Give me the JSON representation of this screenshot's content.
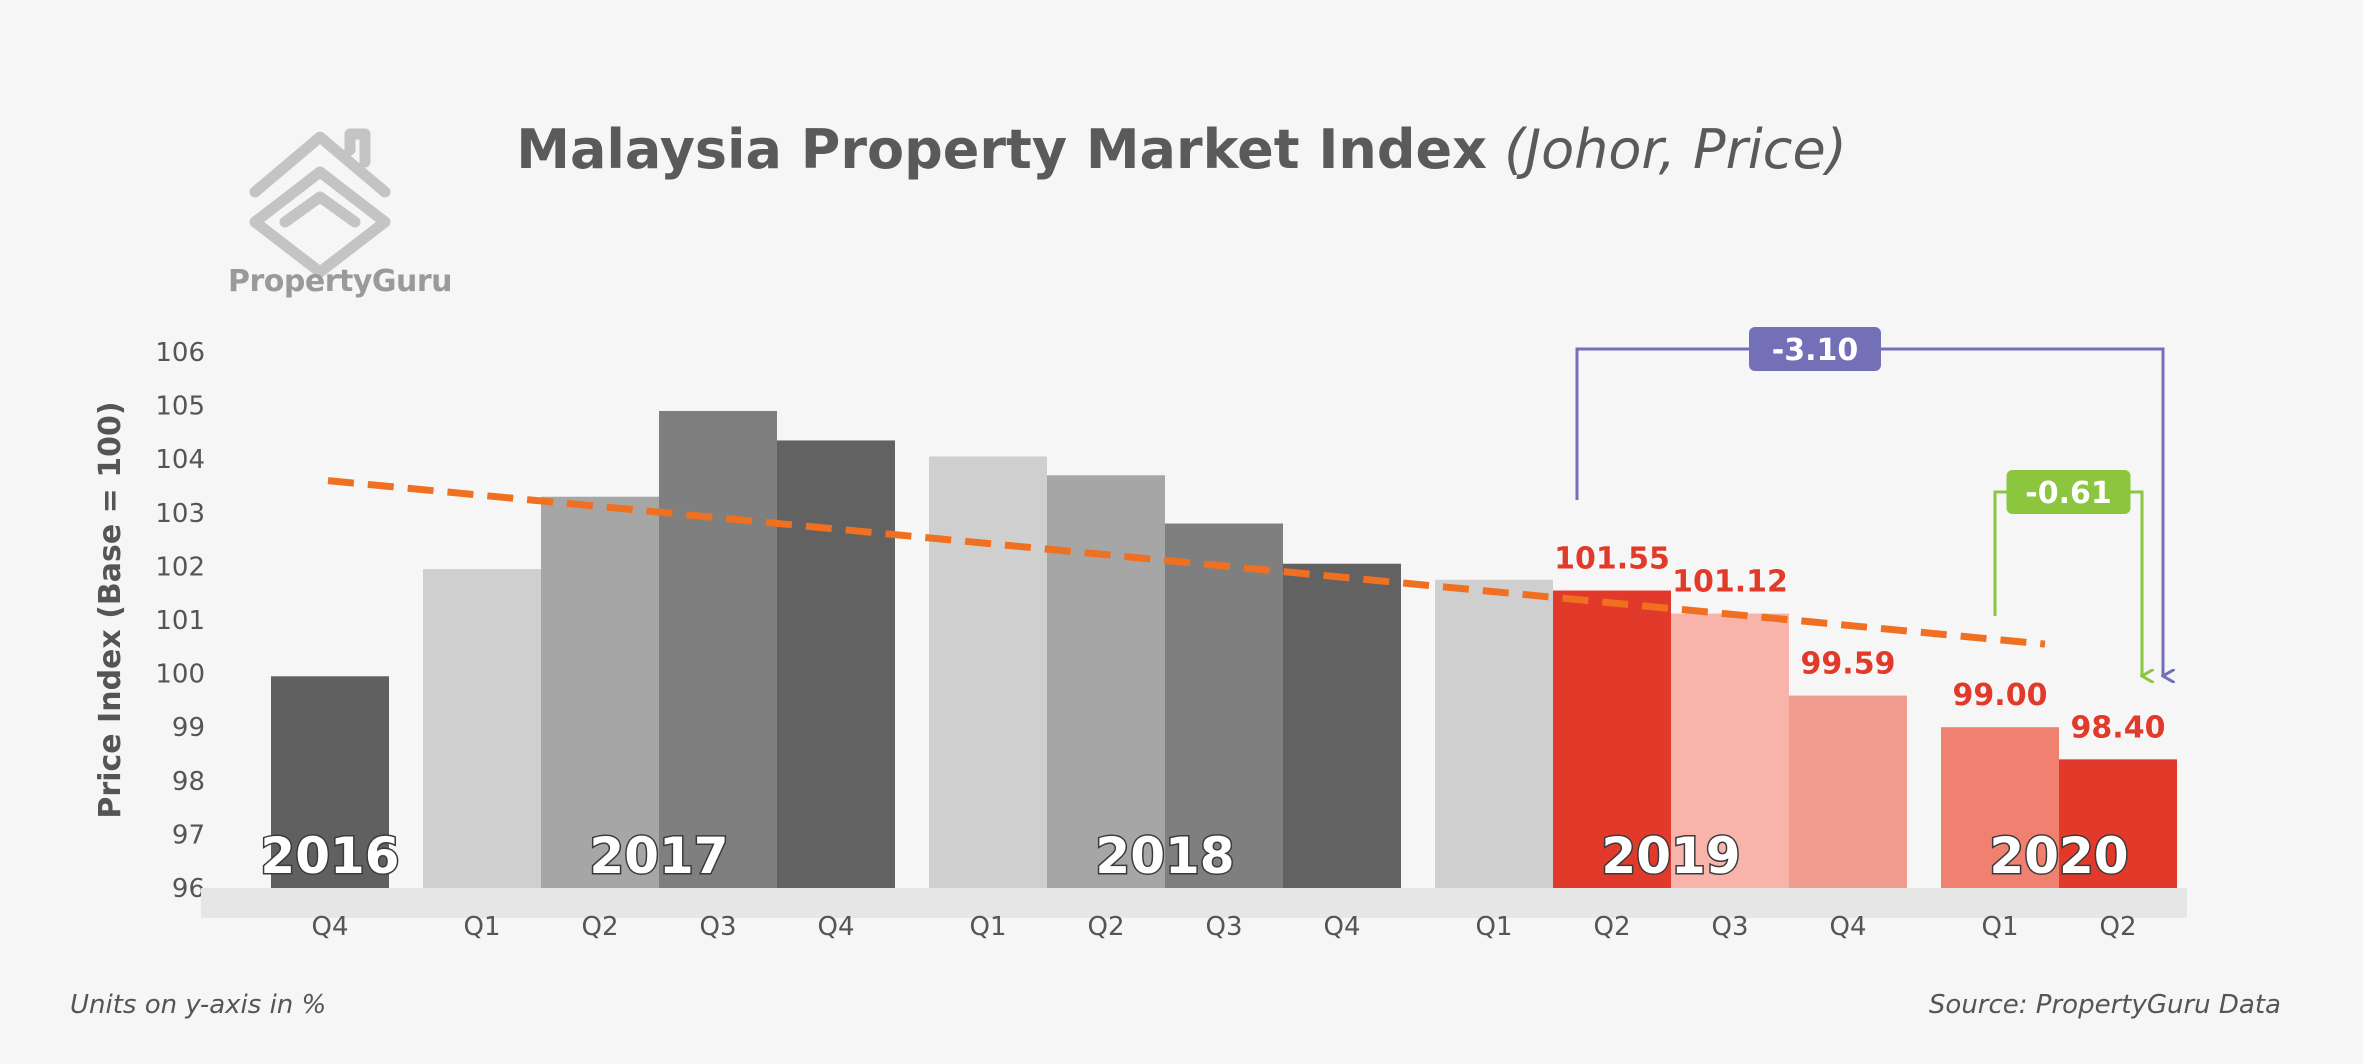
{
  "header": {
    "title_main": "Malaysia Property Market Index",
    "title_sub": "(Johor, Price)"
  },
  "brand": {
    "logo_text": "PropertyGuru"
  },
  "footer": {
    "units_note": "Units on y-axis in %",
    "source_note": "Source: PropertyGuru Data"
  },
  "chart_data": {
    "type": "bar",
    "title": "Malaysia Property Market Index (Johor, Price)",
    "ylabel": "Price Index (Base = 100)",
    "ylim": [
      96,
      106
    ],
    "yticks": [
      96,
      97,
      98,
      99,
      100,
      101,
      102,
      103,
      104,
      105,
      106
    ],
    "grid": false,
    "groups": [
      {
        "year": "2016",
        "quarters": [
          "Q4"
        ],
        "values": [
          99.95
        ],
        "colors": [
          "#606060"
        ]
      },
      {
        "year": "2017",
        "quarters": [
          "Q1",
          "Q2",
          "Q3",
          "Q4"
        ],
        "values": [
          101.95,
          103.3,
          104.9,
          104.35
        ],
        "colors": [
          "#cfcfcf",
          "#a6a6a6",
          "#7f7f7f",
          "#626262"
        ]
      },
      {
        "year": "2018",
        "quarters": [
          "Q1",
          "Q2",
          "Q3",
          "Q4"
        ],
        "values": [
          104.05,
          103.7,
          102.8,
          102.05
        ],
        "colors": [
          "#cfcfcf",
          "#a6a6a6",
          "#7f7f7f",
          "#626262"
        ]
      },
      {
        "year": "2019",
        "quarters": [
          "Q1",
          "Q2",
          "Q3",
          "Q4"
        ],
        "values": [
          101.75,
          101.55,
          101.12,
          99.59
        ],
        "colors": [
          "#cfcfcf",
          "#e13a2b",
          "#f8b4aa",
          "#f09c8f"
        ]
      },
      {
        "year": "2020",
        "quarters": [
          "Q1",
          "Q2"
        ],
        "values": [
          99.0,
          98.4
        ],
        "colors": [
          "#f08070",
          "#e13a2b"
        ]
      }
    ],
    "data_labels": [
      {
        "quarter": "2019 Q2",
        "text": "101.55"
      },
      {
        "quarter": "2019 Q3",
        "text": "101.12"
      },
      {
        "quarter": "2019 Q4",
        "text": "99.59"
      },
      {
        "quarter": "2020 Q1",
        "text": "99.00"
      },
      {
        "quarter": "2020 Q2",
        "text": "98.40"
      }
    ],
    "trendline": {
      "style": "dashed",
      "color": "#f07022",
      "start_value": 103.6,
      "end_value": 100.55
    },
    "annotations": [
      {
        "text": "-3.10",
        "from": "2019 Q2",
        "to": "2020 Q2",
        "color": "#7470b8"
      },
      {
        "text": "-0.61",
        "from": "2020 Q1",
        "to": "2020 Q2",
        "color": "#8cc63f"
      }
    ]
  }
}
